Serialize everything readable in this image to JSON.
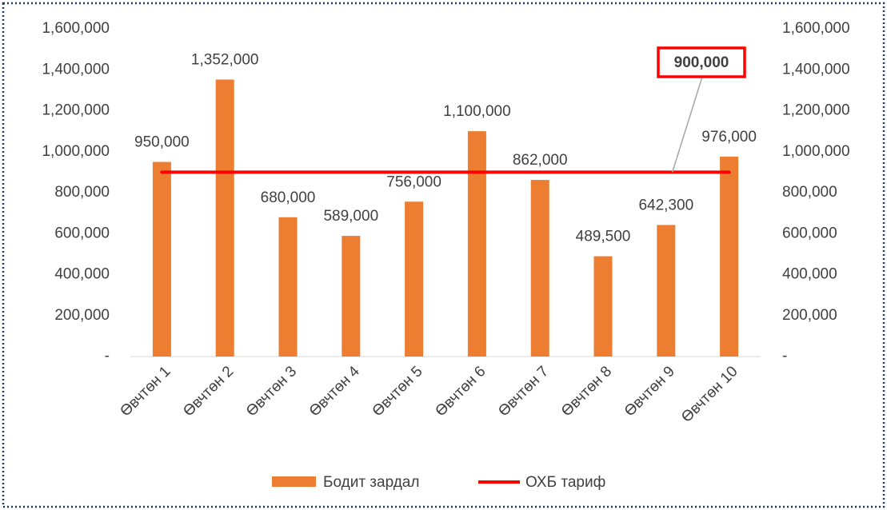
{
  "chart_data": {
    "type": "bar",
    "categories": [
      "Өвчтөн 1",
      "Өвчтөн 2",
      "Өвчтөн 3",
      "Өвчтөн 4",
      "Өвчтөн 5",
      "Өвчтөн 6",
      "Өвчтөн 7",
      "Өвчтөн 8",
      "Өвчтөн 9",
      "Өвчтөн 10"
    ],
    "series": [
      {
        "name": "Бодит зардал",
        "color": "#ed7d31",
        "type": "bar",
        "values": [
          950000,
          1352000,
          680000,
          589000,
          756000,
          1100000,
          862000,
          489500,
          642300,
          976000
        ],
        "value_labels": [
          "950,000",
          "1,352,000",
          "680,000",
          "589,000",
          "756,000",
          "1,100,000",
          "862,000",
          "489,500",
          "642,300",
          "976,000"
        ]
      },
      {
        "name": "ОХБ тариф",
        "color": "#ff0000",
        "type": "line",
        "axis": "y2",
        "values": [
          900000,
          900000,
          900000,
          900000,
          900000,
          900000,
          900000,
          900000,
          900000,
          900000
        ]
      }
    ],
    "annotation": {
      "label": "900,000",
      "value": 900000
    },
    "ylim": [
      0,
      1600000
    ],
    "yticks": [
      {
        "value": 0,
        "label": "-"
      },
      {
        "value": 200000,
        "label": "200,000"
      },
      {
        "value": 400000,
        "label": "400,000"
      },
      {
        "value": 600000,
        "label": "600,000"
      },
      {
        "value": 800000,
        "label": "800,000"
      },
      {
        "value": 1000000,
        "label": "1,000,000"
      },
      {
        "value": 1200000,
        "label": "1,200,000"
      },
      {
        "value": 1400000,
        "label": "1,400,000"
      },
      {
        "value": 1600000,
        "label": "1,600,000"
      }
    ],
    "y2lim": [
      0,
      1600000
    ],
    "y2ticks": [
      {
        "value": 0,
        "label": "-"
      },
      {
        "value": 200000,
        "label": "200,000"
      },
      {
        "value": 400000,
        "label": "400,000"
      },
      {
        "value": 600000,
        "label": "600,000"
      },
      {
        "value": 800000,
        "label": "800,000"
      },
      {
        "value": 1000000,
        "label": "1,000,000"
      },
      {
        "value": 1200000,
        "label": "1,200,000"
      },
      {
        "value": 1400000,
        "label": "1,400,000"
      },
      {
        "value": 1600000,
        "label": "1,600,000"
      }
    ],
    "grid": false,
    "legend": "bottom"
  }
}
